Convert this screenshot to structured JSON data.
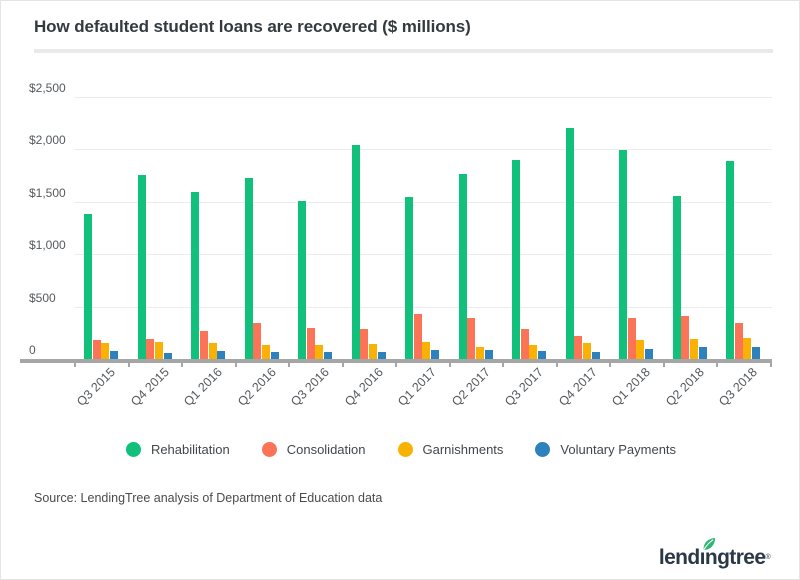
{
  "title": "How defaulted student loans are recovered ($ millions)",
  "source": "Source: LendingTree analysis of Department of Education data",
  "logo": {
    "text": "lendingtree",
    "registered": "®",
    "leaf_color": "#2bb673",
    "text_color": "#2b3847"
  },
  "colors": {
    "rehabilitation": "#11c07a",
    "consolidation": "#fc7458",
    "garnishments": "#f9b104",
    "voluntary_payments": "#2d82be",
    "gridline": "#ececec",
    "axis": "#a6a6a6"
  },
  "chart_data": {
    "type": "bar",
    "title": "How defaulted student loans are recovered ($ millions)",
    "xlabel": "",
    "ylabel": "",
    "ylim": [
      0,
      2500
    ],
    "grid": true,
    "legend_position": "bottom",
    "y_ticks": [
      {
        "label": "$2,500",
        "value": 2500
      },
      {
        "label": "$2,000",
        "value": 2000
      },
      {
        "label": "$1,500",
        "value": 1500
      },
      {
        "label": "$1,000",
        "value": 1000
      },
      {
        "label": "$500",
        "value": 500
      },
      {
        "label": "0",
        "value": 0
      }
    ],
    "categories": [
      "Q3 2015",
      "Q4 2015",
      "Q1 2016",
      "Q2 2016",
      "Q3 2016",
      "Q4 2016",
      "Q1 2017",
      "Q2 2017",
      "Q3 2017",
      "Q4 2017",
      "Q1 2018",
      "Q2 2018",
      "Q3 2018"
    ],
    "series": [
      {
        "name": "Rehabilitation",
        "color": "#11c07a",
        "values": [
          1385,
          1755,
          1595,
          1725,
          1505,
          2045,
          1545,
          1770,
          1900,
          2200,
          1995,
          1560,
          1890
        ]
      },
      {
        "name": "Consolidation",
        "color": "#fc7458",
        "values": [
          185,
          195,
          265,
          340,
          295,
          290,
          430,
          395,
          285,
          220,
          395,
          410,
          345
        ]
      },
      {
        "name": "Garnishments",
        "color": "#f9b104",
        "values": [
          150,
          160,
          150,
          130,
          130,
          140,
          160,
          115,
          130,
          155,
          180,
          195,
          205
        ]
      },
      {
        "name": "Voluntary Payments",
        "color": "#2d82be",
        "values": [
          75,
          60,
          80,
          70,
          65,
          70,
          90,
          90,
          75,
          65,
          95,
          115,
          115
        ]
      }
    ]
  }
}
